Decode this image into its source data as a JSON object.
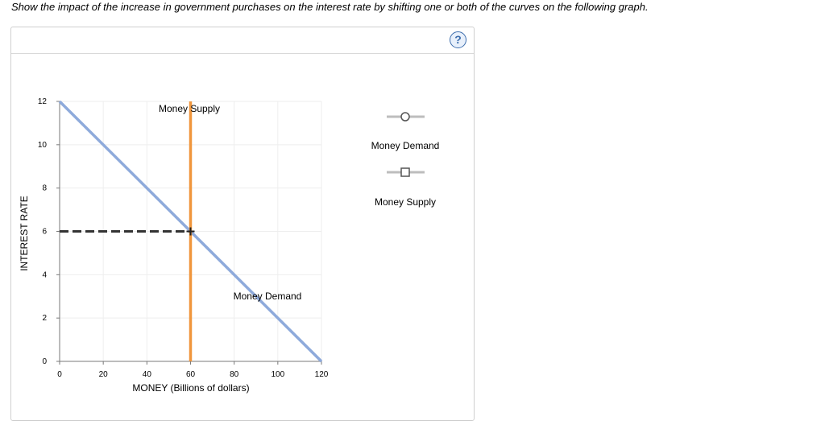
{
  "instructions": "Show the impact of the increase in government purchases on the interest rate by shifting one or both of the curves on the following graph.",
  "help_icon": "?",
  "graph": {
    "y_axis_label": "INTEREST RATE",
    "x_axis_label": "MONEY (Billions of dollars)",
    "x_ticks": [
      "0",
      "20",
      "40",
      "60",
      "80",
      "100",
      "120"
    ],
    "y_ticks": [
      "0",
      "2",
      "4",
      "6",
      "8",
      "10",
      "12"
    ],
    "money_supply_label": "Money Supply",
    "money_demand_label": "Money Demand",
    "money_supply_quantity": 60,
    "money_demand_points": [
      [
        0,
        12
      ],
      [
        120,
        0
      ]
    ],
    "equilibrium": {
      "x": 60,
      "y": 6
    },
    "colors": {
      "money_demand": "#8eaadb",
      "money_supply": "#f0963c",
      "dashed": "#333333"
    }
  },
  "legend": {
    "items": [
      {
        "label": "Money Demand",
        "marker": "circle-marker-icon"
      },
      {
        "label": "Money Supply",
        "marker": "square-marker-icon"
      }
    ]
  }
}
